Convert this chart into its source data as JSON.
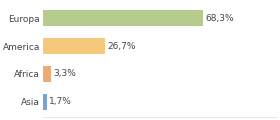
{
  "categories": [
    "Europa",
    "America",
    "Africa",
    "Asia"
  ],
  "values": [
    68.3,
    26.7,
    3.3,
    1.7
  ],
  "labels": [
    "68,3%",
    "26,7%",
    "3,3%",
    "1,7%"
  ],
  "bar_colors": [
    "#b5cc8e",
    "#f5c97a",
    "#f0a878",
    "#7b9fd4"
  ],
  "background_color": "#ffffff",
  "plot_bg_color": "#ffffff",
  "xlim": [
    0,
    100
  ],
  "bar_height": 0.55,
  "label_fontsize": 6.5,
  "cat_fontsize": 6.5,
  "grid_color": "#dddddd"
}
